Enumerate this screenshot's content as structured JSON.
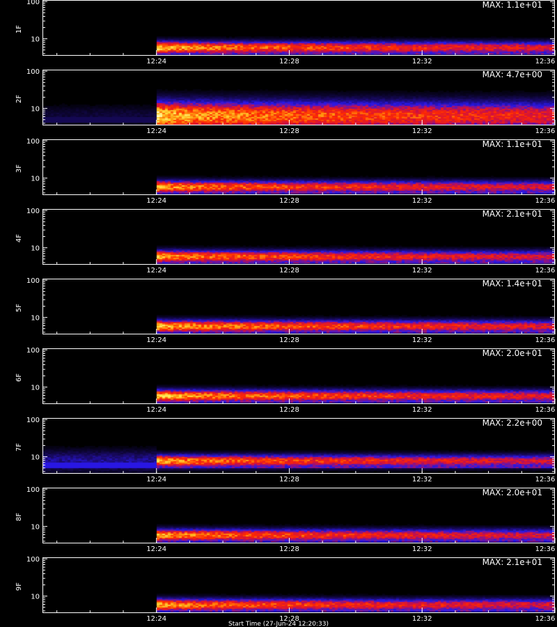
{
  "chart_data": {
    "type": "heatmap",
    "x_range": [
      "12:20:34",
      "12:36:00"
    ],
    "x_ticks": [
      "12:24",
      "12:28",
      "12:32",
      "12:36"
    ],
    "y_scale": "log",
    "y_range": [
      3.5,
      110
    ],
    "y_ticks": [
      "100",
      "10"
    ],
    "colormap": [
      "#000000",
      "#1a0a6a",
      "#2a18e8",
      "#d01040",
      "#ff2a00",
      "#ff9a10",
      "#ffe040",
      "#ffffd0"
    ],
    "panels": [
      {
        "label": "1F",
        "max_label": "MAX: 1.1e+01",
        "onset": "12:24",
        "band_center": 6.0,
        "peak_intensity": 0.95,
        "pre_onset_level": 0.0
      },
      {
        "label": "2F",
        "max_label": "MAX: 4.7e+00",
        "onset": "12:24",
        "band_center": 6.5,
        "peak_intensity": 1.0,
        "pre_onset_level": 0.08
      },
      {
        "label": "3F",
        "max_label": "MAX: 1.1e+01",
        "onset": "12:24",
        "band_center": 6.0,
        "peak_intensity": 0.9,
        "pre_onset_level": 0.0
      },
      {
        "label": "4F",
        "max_label": "MAX: 2.1e+01",
        "onset": "12:24",
        "band_center": 6.0,
        "peak_intensity": 0.9,
        "pre_onset_level": 0.0
      },
      {
        "label": "5F",
        "max_label": "MAX: 1.4e+01",
        "onset": "12:24",
        "band_center": 6.0,
        "peak_intensity": 0.95,
        "pre_onset_level": 0.0
      },
      {
        "label": "6F",
        "max_label": "MAX: 2.0e+01",
        "onset": "12:24",
        "band_center": 6.0,
        "peak_intensity": 0.95,
        "pre_onset_level": 0.0
      },
      {
        "label": "7F",
        "max_label": "MAX: 2.2e+00",
        "onset": "12:24",
        "band_center": 8.0,
        "peak_intensity": 0.9,
        "pre_onset_level": 0.2
      },
      {
        "label": "8F",
        "max_label": "MAX: 2.0e+01",
        "onset": "12:24",
        "band_center": 6.0,
        "peak_intensity": 0.9,
        "pre_onset_level": 0.0
      },
      {
        "label": "9F",
        "max_label": "MAX: 2.1e+01",
        "onset": "12:24",
        "band_center": 6.0,
        "peak_intensity": 0.9,
        "pre_onset_level": 0.0
      }
    ],
    "bottom_label": "Start Time (27-Jun-24 12:20:33)"
  }
}
